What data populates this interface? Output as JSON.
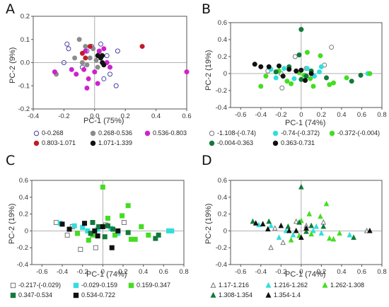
{
  "chart_data": [
    {
      "panel": "A",
      "type": "scatter",
      "xlabel": "PC-1 (75%)",
      "ylabel": "PC-2 (9%)",
      "xlim": [
        -0.4,
        0.6
      ],
      "ylim": [
        -0.2,
        0.2
      ],
      "xticks": [
        "-0.4",
        "-0.2",
        "0.0",
        "0.2",
        "0.4",
        "0.6"
      ],
      "yticks": [
        "-0.2",
        "-0.1",
        "0.0",
        "0.1",
        "0.2"
      ],
      "xtick_values": [
        -0.4,
        -0.2,
        0.0,
        0.2,
        0.4,
        0.6
      ],
      "ytick_values": [
        -0.2,
        -0.1,
        0.0,
        0.1,
        0.2
      ],
      "legend_placement": "bottom",
      "series": [
        {
          "name": "0-0.268",
          "marker": "open-circle",
          "color": "#4b3fa8",
          "points": [
            [
              -0.18,
              0.08
            ],
            [
              -0.17,
              0.06
            ],
            [
              -0.08,
              -0.02
            ],
            [
              -0.05,
              0.05
            ],
            [
              0.04,
              0.08
            ],
            [
              0.06,
              -0.07
            ],
            [
              0.1,
              -0.05
            ],
            [
              0.15,
              0.05
            ],
            [
              0.14,
              -0.1
            ],
            [
              -0.2,
              0.0
            ],
            [
              0.08,
              0.03
            ],
            [
              -0.02,
              0.07
            ]
          ]
        },
        {
          "name": "0.268-0.536",
          "marker": "filled-circle",
          "color": "#8c8c8c",
          "points": [
            [
              -0.13,
              0.02
            ],
            [
              -0.1,
              0.1
            ],
            [
              -0.08,
              0.0
            ],
            [
              -0.05,
              -0.01
            ],
            [
              -0.03,
              0.02
            ],
            [
              -0.01,
              0.06
            ],
            [
              0.01,
              0.01
            ],
            [
              0.03,
              0.04
            ],
            [
              -0.25,
              -0.05
            ],
            [
              -0.06,
              0.07
            ],
            [
              0.02,
              -0.02
            ]
          ]
        },
        {
          "name": "0.536-0.803",
          "marker": "filled-circle",
          "color": "#cc22cc",
          "points": [
            [
              -0.26,
              -0.04
            ],
            [
              -0.12,
              -0.05
            ],
            [
              -0.07,
              -0.03
            ],
            [
              -0.05,
              -0.11
            ],
            [
              -0.04,
              -0.07
            ],
            [
              0.0,
              -0.04
            ],
            [
              0.02,
              -0.09
            ],
            [
              0.03,
              0.05
            ],
            [
              0.06,
              0.06
            ],
            [
              0.1,
              -0.02
            ],
            [
              0.08,
              0.0
            ],
            [
              -0.15,
              -0.03
            ],
            [
              0.6,
              -0.04
            ],
            [
              -0.06,
              0.05
            ]
          ]
        },
        {
          "name": "0.803-1.071",
          "marker": "filled-circle",
          "color": "#c01d2a",
          "points": [
            [
              -0.08,
              0.04
            ],
            [
              -0.06,
              0.02
            ],
            [
              -0.03,
              0.07
            ],
            [
              0.31,
              0.07
            ]
          ]
        },
        {
          "name": "1.071-1.339",
          "marker": "filled-circle",
          "color": "#111111",
          "points": [
            [
              0.02,
              0.03
            ],
            [
              0.04,
              0.02
            ],
            [
              0.05,
              0.03
            ],
            [
              0.05,
              0.0
            ],
            [
              0.06,
              -0.01
            ]
          ]
        }
      ]
    },
    {
      "panel": "B",
      "type": "scatter",
      "xlabel": "PC-1 (74%)",
      "ylabel": "PC-2 (19%)",
      "xlim": [
        -0.7,
        0.8
      ],
      "ylim": [
        -0.4,
        0.6
      ],
      "xticks": [
        "-0.6",
        "-0.4",
        "-0.2",
        "0",
        "0.2",
        "0.4",
        "0.6",
        "0.8"
      ],
      "yticks": [
        "-0.4",
        "-0.2",
        "0",
        "0.2",
        "0.4",
        "0.6"
      ],
      "xtick_values": [
        -0.6,
        -0.4,
        -0.2,
        0,
        0.2,
        0.4,
        0.6,
        0.8
      ],
      "ytick_values": [
        -0.4,
        -0.2,
        0,
        0.2,
        0.4,
        0.6
      ],
      "legend_placement": "bottom",
      "series": [
        {
          "name": "-1.108-(-0.74)",
          "marker": "open-circle",
          "color": "#777777",
          "points": [
            [
              0.3,
              0.31
            ],
            [
              -0.19,
              -0.17
            ],
            [
              0.23,
              0.1
            ],
            [
              -0.06,
              0.2
            ],
            [
              -0.2,
              0.0
            ],
            [
              0.05,
              0.06
            ],
            [
              -0.33,
              0.03
            ]
          ]
        },
        {
          "name": "-0.74-(-0.372)",
          "marker": "filled-circle",
          "color": "#33dddd",
          "points": [
            [
              -0.3,
              0.05
            ],
            [
              -0.17,
              0.06
            ],
            [
              -0.07,
              -0.06
            ],
            [
              0.06,
              0.06
            ],
            [
              0.18,
              0.02
            ],
            [
              0.66,
              0.0
            ],
            [
              -0.25,
              -0.05
            ],
            [
              0.13,
              -0.03
            ],
            [
              0.2,
              0.08
            ]
          ]
        },
        {
          "name": "-0.372-(-0.004)",
          "marker": "filled-circle",
          "color": "#44dd22",
          "points": [
            [
              -0.35,
              -0.03
            ],
            [
              -0.22,
              0.03
            ],
            [
              -0.14,
              -0.09
            ],
            [
              -0.1,
              -0.12
            ],
            [
              0.06,
              0.25
            ],
            [
              0.09,
              -0.06
            ],
            [
              0.12,
              -0.15
            ],
            [
              0.19,
              0.21
            ],
            [
              0.28,
              -0.13
            ],
            [
              0.32,
              -0.11
            ],
            [
              0.45,
              -0.05
            ],
            [
              0.68,
              0.0
            ],
            [
              -0.4,
              -0.15
            ],
            [
              0.03,
              -0.02
            ],
            [
              -0.02,
              0.01
            ]
          ]
        },
        {
          "name": "-0.004-0.363",
          "marker": "filled-circle",
          "color": "#137a3a",
          "points": [
            [
              0.0,
              0.52
            ],
            [
              -0.02,
              0.22
            ],
            [
              -0.12,
              0.08
            ],
            [
              0.05,
              -0.03
            ],
            [
              0.1,
              0.03
            ],
            [
              0.25,
              -0.05
            ],
            [
              0.59,
              -0.02
            ],
            [
              0.5,
              -0.09
            ],
            [
              -0.25,
              0.02
            ],
            [
              0.0,
              -0.07
            ]
          ]
        },
        {
          "name": "0.363-0.731",
          "marker": "filled-circle",
          "color": "#111111",
          "points": [
            [
              -0.46,
              0.11
            ],
            [
              -0.4,
              0.08
            ],
            [
              -0.32,
              0.08
            ],
            [
              -0.22,
              0.09
            ],
            [
              -0.12,
              0.05
            ],
            [
              -0.05,
              0.03
            ],
            [
              0.0,
              0.04
            ],
            [
              0.1,
              0.0
            ],
            [
              -0.18,
              -0.03
            ],
            [
              0.04,
              -0.08
            ]
          ]
        }
      ]
    },
    {
      "panel": "C",
      "type": "scatter",
      "xlabel": "PC-1 (74%)",
      "ylabel": "PC-2 (19%)",
      "xlim": [
        -0.7,
        0.8
      ],
      "ylim": [
        -0.4,
        0.6
      ],
      "xticks": [
        "-0.6",
        "-0.4",
        "-0.2",
        "0",
        "0.2",
        "0.4",
        "0.6",
        "0.8"
      ],
      "yticks": [
        "-0.4",
        "-0.2",
        "0",
        "0.2",
        "0.4",
        "0.6"
      ],
      "xtick_values": [
        -0.6,
        -0.4,
        -0.2,
        0,
        0.2,
        0.4,
        0.6,
        0.8
      ],
      "ytick_values": [
        -0.4,
        -0.2,
        0,
        0.2,
        0.4,
        0.6
      ],
      "legend_placement": "bottom",
      "series": [
        {
          "name": "-0.217-(-0.029)",
          "marker": "open-square",
          "color": "#777777",
          "points": [
            [
              -0.46,
              0.1
            ],
            [
              -0.3,
              0.05
            ],
            [
              -0.22,
              -0.22
            ],
            [
              -0.35,
              -0.05
            ],
            [
              -0.07,
              -0.2
            ],
            [
              0.03,
              0.07
            ],
            [
              0.21,
              0.1
            ]
          ]
        },
        {
          "name": "-0.029-0.159",
          "marker": "filled-square",
          "color": "#33dddd",
          "points": [
            [
              -0.42,
              0.09
            ],
            [
              -0.28,
              0.06
            ],
            [
              -0.15,
              0.0
            ],
            [
              -0.05,
              0.02
            ],
            [
              0.08,
              0.03
            ],
            [
              0.15,
              -0.03
            ],
            [
              0.65,
              0.0
            ],
            [
              0.68,
              0.0
            ],
            [
              -0.2,
              0.04
            ]
          ]
        },
        {
          "name": "0.159-0.347",
          "marker": "filled-square",
          "color": "#44dd22",
          "points": [
            [
              0.0,
              0.52
            ],
            [
              0.05,
              0.15
            ],
            [
              0.12,
              -0.05
            ],
            [
              0.19,
              0.18
            ],
            [
              0.25,
              0.3
            ],
            [
              0.28,
              -0.1
            ],
            [
              0.32,
              -0.1
            ],
            [
              0.45,
              -0.05
            ],
            [
              -0.14,
              -0.11
            ],
            [
              -0.1,
              -0.05
            ],
            [
              -0.25,
              -0.03
            ],
            [
              0.38,
              0.05
            ]
          ]
        },
        {
          "name": "0.347-0.534",
          "marker": "filled-square",
          "color": "#137a3a",
          "points": [
            [
              -0.1,
              0.1
            ],
            [
              -0.04,
              0.05
            ],
            [
              0.05,
              0.06
            ],
            [
              0.1,
              0.02
            ],
            [
              0.25,
              -0.02
            ],
            [
              0.52,
              -0.09
            ],
            [
              0.55,
              -0.05
            ],
            [
              0.02,
              -0.07
            ],
            [
              -0.12,
              -0.03
            ]
          ]
        },
        {
          "name": "0.534-0.722",
          "marker": "filled-square",
          "color": "#111111",
          "points": [
            [
              -0.4,
              0.08
            ],
            [
              -0.33,
              0.02
            ],
            [
              -0.18,
              0.09
            ],
            [
              -0.08,
              0.0
            ],
            [
              0.0,
              0.05
            ],
            [
              0.09,
              -0.2
            ],
            [
              -0.05,
              -0.06
            ],
            [
              0.15,
              0.0
            ]
          ]
        }
      ]
    },
    {
      "panel": "D",
      "type": "scatter",
      "xlabel": "PC-1 (74%)",
      "ylabel": "PC-2 (19%)",
      "xlim": [
        -0.7,
        0.8
      ],
      "ylim": [
        -0.4,
        0.6
      ],
      "xticks": [
        "-0.6",
        "-0.4",
        "-0.2",
        "0",
        "0.2",
        "0.4",
        "0.6",
        "0.8"
      ],
      "yticks": [
        "-0.4",
        "-0.2",
        "0",
        "0.2",
        "0.4",
        "0.6"
      ],
      "xtick_values": [
        -0.6,
        -0.4,
        -0.2,
        0,
        0.2,
        0.4,
        0.6,
        0.8
      ],
      "ytick_values": [
        -0.4,
        -0.2,
        0,
        0.2,
        0.4,
        0.6
      ],
      "legend_placement": "bottom",
      "series": [
        {
          "name": "1.17-1.216",
          "marker": "open-triangle",
          "color": "#777777",
          "points": [
            [
              -0.3,
              -0.2
            ],
            [
              -0.26,
              0.03
            ],
            [
              -0.18,
              -0.14
            ],
            [
              0.05,
              0.06
            ],
            [
              0.22,
              0.1
            ],
            [
              0.65,
              0.0
            ],
            [
              -0.05,
              0.11
            ]
          ]
        },
        {
          "name": "1.216-1.262",
          "marker": "filled-triangle",
          "color": "#33dddd",
          "points": [
            [
              -0.42,
              0.07
            ],
            [
              -0.3,
              0.06
            ],
            [
              -0.15,
              0.0
            ],
            [
              -0.08,
              -0.05
            ],
            [
              0.12,
              0.0
            ],
            [
              0.15,
              0.05
            ],
            [
              0.2,
              -0.03
            ],
            [
              0.48,
              -0.05
            ],
            [
              -0.22,
              -0.08
            ]
          ]
        },
        {
          "name": "1.262-1.308",
          "marker": "filled-triangle",
          "color": "#44dd22",
          "points": [
            [
              0.0,
              0.12
            ],
            [
              0.08,
              0.2
            ],
            [
              0.19,
              0.17
            ],
            [
              0.25,
              0.32
            ],
            [
              0.28,
              -0.09
            ],
            [
              0.32,
              -0.1
            ],
            [
              0.38,
              -0.03
            ],
            [
              -0.1,
              -0.11
            ],
            [
              -0.02,
              -0.06
            ],
            [
              0.1,
              -0.04
            ]
          ]
        },
        {
          "name": "1.308-1.354",
          "marker": "filled-triangle",
          "color": "#137a3a",
          "points": [
            [
              0.0,
              0.52
            ],
            [
              -0.02,
              0.1
            ],
            [
              0.05,
              -0.01
            ],
            [
              0.1,
              0.06
            ],
            [
              -0.13,
              0.05
            ],
            [
              0.22,
              0.05
            ],
            [
              0.52,
              -0.08
            ],
            [
              -0.48,
              0.11
            ],
            [
              -0.32,
              0.11
            ]
          ]
        },
        {
          "name": "1.354-1.4",
          "marker": "filled-triangle",
          "color": "#111111",
          "points": [
            [
              -0.45,
              0.09
            ],
            [
              -0.38,
              0.08
            ],
            [
              -0.33,
              0.02
            ],
            [
              -0.2,
              0.06
            ],
            [
              -0.05,
              0.0
            ],
            [
              0.05,
              0.03
            ],
            [
              0.0,
              -0.08
            ],
            [
              0.68,
              0.0
            ],
            [
              -0.12,
              0.0
            ]
          ]
        }
      ]
    }
  ]
}
